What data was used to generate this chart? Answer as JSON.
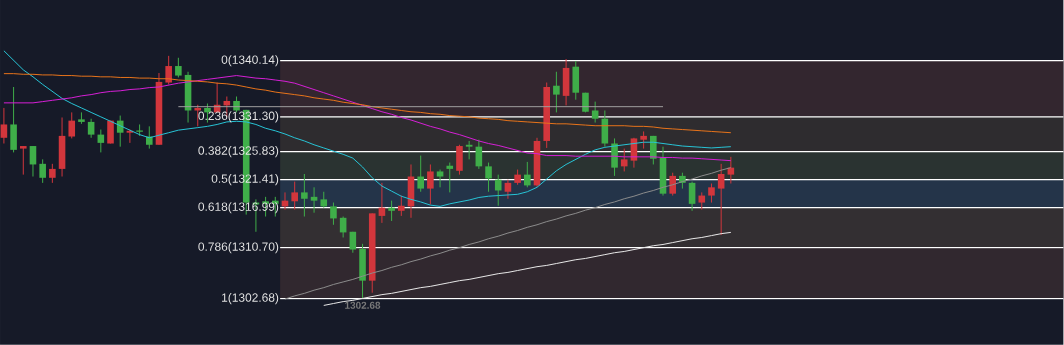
{
  "chart_data": {
    "type": "candlestick",
    "categories": [
      null,
      null,
      null,
      null,
      null,
      null,
      null,
      null,
      null,
      null,
      null,
      null,
      null,
      null,
      null,
      null,
      null,
      null,
      null,
      null,
      null,
      null,
      null,
      null,
      null,
      null,
      null,
      null,
      null,
      null,
      null,
      null,
      null,
      null,
      null,
      null,
      null,
      null,
      null,
      null,
      null,
      null,
      null,
      null,
      null,
      null,
      null,
      null,
      null,
      null,
      null,
      null,
      null,
      null,
      null,
      null,
      null,
      null,
      null,
      null,
      null,
      null,
      null,
      null,
      null,
      null,
      null,
      null,
      null,
      null,
      null,
      null,
      null,
      null,
      null,
      null
    ],
    "ylim": [
      1295.4,
      1349.7
    ],
    "tick_labels": false,
    "series": [
      {
        "ohlc": [
          [
            1328.0,
            1332.7,
            1327.1,
            1330.1
          ],
          [
            1330.1,
            1336.0,
            1325.7,
            1326.1
          ],
          [
            1326.3,
            1326.7,
            1322.2,
            1326.7
          ],
          [
            1326.7,
            1326.7,
            1321.9,
            1323.8
          ],
          [
            1323.9,
            1324.6,
            1320.9,
            1321.7
          ],
          [
            1321.7,
            1323.9,
            1320.9,
            1323.1
          ],
          [
            1323.1,
            1331.2,
            1321.9,
            1328.3
          ],
          [
            1328.2,
            1332.0,
            1327.9,
            1330.7
          ],
          [
            1330.9,
            1332.0,
            1330.2,
            1330.5
          ],
          [
            1330.5,
            1331.0,
            1328.0,
            1328.5
          ],
          [
            1328.5,
            1329.3,
            1325.7,
            1327.2
          ],
          [
            1327.1,
            1330.7,
            1327.1,
            1330.7
          ],
          [
            1330.7,
            1331.5,
            1326.6,
            1328.8
          ],
          [
            1328.8,
            1329.3,
            1327.2,
            1329.1
          ],
          [
            1329.1,
            1330.1,
            1328.3,
            1329.0
          ],
          [
            1328.2,
            1329.8,
            1326.3,
            1326.9
          ],
          [
            1326.9,
            1338.2,
            1326.9,
            1336.8
          ],
          [
            1336.7,
            1340.9,
            1336.4,
            1339.3
          ],
          [
            1339.3,
            1340.6,
            1337.5,
            1337.8
          ],
          [
            1337.9,
            1338.4,
            1330.4,
            1332.3
          ],
          [
            1332.3,
            1333.2,
            1329.8,
            1332.7
          ],
          [
            1332.7,
            1333.4,
            1330.4,
            1332.0
          ],
          [
            1332.0,
            1336.7,
            1332.0,
            1333.2
          ],
          [
            1333.1,
            1334.5,
            1331.3,
            1333.8
          ],
          [
            1333.8,
            1334.5,
            1332.0,
            1332.3
          ],
          [
            1332.4,
            1332.4,
            1315.9,
            1317.8
          ],
          [
            1317.8,
            1318.3,
            1313.2,
            1317.5
          ],
          [
            1318.0,
            1318.7,
            1315.6,
            1317.6
          ],
          [
            1318.1,
            1318.7,
            1315.6,
            1317.6
          ],
          [
            1317.2,
            1319.4,
            1316.7,
            1318.1
          ],
          [
            1318.0,
            1321.1,
            1316.7,
            1319.4
          ],
          [
            1319.4,
            1322.3,
            1315.6,
            1318.4
          ],
          [
            1318.7,
            1320.2,
            1316.2,
            1318.1
          ],
          [
            1318.3,
            1319.5,
            1317.0,
            1317.2
          ],
          [
            1317.2,
            1317.8,
            1314.3,
            1315.3
          ],
          [
            1315.4,
            1315.6,
            1312.3,
            1313.1
          ],
          [
            1313.2,
            1313.2,
            1309.9,
            1310.4
          ],
          [
            1310.5,
            1311.3,
            1302.68,
            1305.5
          ],
          [
            1305.5,
            1316.1,
            1303.6,
            1316.1
          ],
          [
            1315.7,
            1320.9,
            1314.6,
            1317.0
          ],
          [
            1317.0,
            1318.1,
            1314.9,
            1316.5
          ],
          [
            1316.5,
            1318.9,
            1315.7,
            1317.3
          ],
          [
            1317.2,
            1323.8,
            1315.4,
            1321.9
          ],
          [
            1321.9,
            1325.2,
            1319.5,
            1320.0
          ],
          [
            1320.0,
            1323.8,
            1317.5,
            1322.7
          ],
          [
            1322.7,
            1323.0,
            1320.2,
            1321.9
          ],
          [
            1323.6,
            1324.1,
            1319.4,
            1323.1
          ],
          [
            1322.8,
            1326.9,
            1322.2,
            1326.7
          ],
          [
            1326.9,
            1327.5,
            1324.6,
            1326.6
          ],
          [
            1326.6,
            1327.7,
            1323.1,
            1323.5
          ],
          [
            1323.5,
            1324.1,
            1319.5,
            1321.6
          ],
          [
            1321.4,
            1322.2,
            1317.3,
            1319.7
          ],
          [
            1319.5,
            1321.4,
            1318.4,
            1320.9
          ],
          [
            1320.9,
            1323.0,
            1320.6,
            1322.2
          ],
          [
            1322.2,
            1324.2,
            1320.2,
            1320.5
          ],
          [
            1320.5,
            1328.0,
            1320.3,
            1327.5
          ],
          [
            1327.5,
            1336.7,
            1326.4,
            1336.0
          ],
          [
            1336.2,
            1338.4,
            1332.0,
            1334.8
          ],
          [
            1334.6,
            1340.4,
            1333.1,
            1339.0
          ],
          [
            1339.2,
            1340.1,
            1334.0,
            1335.1
          ],
          [
            1335.1,
            1335.1,
            1332.0,
            1332.1
          ],
          [
            1332.3,
            1333.7,
            1330.4,
            1331.0
          ],
          [
            1331.0,
            1332.3,
            1326.6,
            1327.1
          ],
          [
            1327.1,
            1327.9,
            1322.0,
            1323.3
          ],
          [
            1323.5,
            1326.3,
            1322.7,
            1324.6
          ],
          [
            1324.4,
            1328.0,
            1323.3,
            1327.9
          ],
          [
            1327.7,
            1329.0,
            1326.3,
            1328.3
          ],
          [
            1328.3,
            1328.3,
            1323.8,
            1324.7
          ],
          [
            1324.9,
            1326.6,
            1318.9,
            1319.2
          ],
          [
            1319.2,
            1322.5,
            1318.9,
            1322.0
          ],
          [
            1322.0,
            1322.5,
            1320.0,
            1320.9
          ],
          [
            1320.9,
            1321.1,
            1316.5,
            1317.6
          ],
          [
            1317.8,
            1319.4,
            1316.7,
            1318.9
          ],
          [
            1318.9,
            1320.8,
            1317.8,
            1320.2
          ],
          [
            1320.0,
            1323.9,
            1312.7,
            1322.3
          ],
          [
            1322.2,
            1325.0,
            1320.8,
            1323.3
          ]
        ],
        "colors": [
          "#d2363c",
          "#3fae49",
          "#d2363c",
          "#3fae49",
          "#3fae49",
          "#d2363c",
          "#d2363c",
          "#d2363c",
          "#3fae49",
          "#3fae49",
          "#3fae49",
          "#d2363c",
          "#3fae49",
          "#d2363c",
          "#3fae49",
          "#3fae49",
          "#d2363c",
          "#d2363c",
          "#3fae49",
          "#3fae49",
          "#d2363c",
          "#3fae49",
          "#d2363c",
          "#d2363c",
          "#3fae49",
          "#3fae49",
          "#3fae49",
          "#3fae49",
          "#3fae49",
          "#d2363c",
          "#d2363c",
          "#3fae49",
          "#3fae49",
          "#3fae49",
          "#3fae49",
          "#3fae49",
          "#3fae49",
          "#3fae49",
          "#d2363c",
          "#d2363c",
          "#3fae49",
          "#d2363c",
          "#d2363c",
          "#3fae49",
          "#d2363c",
          "#3fae49",
          "#3fae49",
          "#d2363c",
          "#3fae49",
          "#3fae49",
          "#3fae49",
          "#3fae49",
          "#d2363c",
          "#d2363c",
          "#3fae49",
          "#d2363c",
          "#d2363c",
          "#3fae49",
          "#d2363c",
          "#3fae49",
          "#3fae49",
          "#3fae49",
          "#3fae49",
          "#3fae49",
          "#d2363c",
          "#d2363c",
          "#d2363c",
          "#3fae49",
          "#3fae49",
          "#d2363c",
          "#3fae49",
          "#3fae49",
          "#d2363c",
          "#d2363c",
          "#d2363c",
          "#d2363c"
        ]
      },
      {
        "type": "line",
        "color": "#27c4d6",
        "values": [
          1341.7,
          1340.2,
          1338.7,
          1337.6,
          1336.4,
          1335.3,
          1334.2,
          1333.4,
          1332.7,
          1332.0,
          1331.3,
          1330.6,
          1329.9,
          1329.2,
          1328.5,
          1328.0,
          1328.4,
          1328.8,
          1329.2,
          1329.4,
          1329.6,
          1329.8,
          1330.1,
          1330.5,
          1330.6,
          1330.5,
          1330.1,
          1329.5,
          1329.1,
          1328.6,
          1328.0,
          1327.5,
          1326.9,
          1326.4,
          1325.9,
          1325.4,
          1324.8,
          1323.4,
          1321.7,
          1320.4,
          1319.6,
          1318.8,
          1318.3,
          1317.9,
          1317.4,
          1317.2,
          1317.6,
          1317.9,
          1318.2,
          1318.6,
          1318.8,
          1318.9,
          1319.0,
          1319.1,
          1319.5,
          1320.2,
          1321.5,
          1322.8,
          1323.8,
          1324.6,
          1325.4,
          1326.1,
          1326.5,
          1326.7,
          1326.9,
          1327.1,
          1327.3,
          1327.3,
          1327.1,
          1326.9,
          1326.7,
          1326.6,
          1326.5,
          1326.4,
          1326.5,
          1326.6
        ]
      },
      {
        "type": "line",
        "color": "#d61fd6",
        "values": [
          1333.5,
          1333.5,
          1333.5,
          1333.5,
          1333.7,
          1333.9,
          1334.1,
          1334.3,
          1334.6,
          1334.8,
          1335.1,
          1335.3,
          1335.4,
          1335.6,
          1335.7,
          1335.9,
          1336.0,
          1336.3,
          1336.6,
          1336.8,
          1337.0,
          1337.2,
          1337.4,
          1337.6,
          1337.8,
          1337.6,
          1337.4,
          1337.3,
          1337.1,
          1336.9,
          1336.6,
          1336.1,
          1335.6,
          1335.1,
          1334.6,
          1334.1,
          1333.6,
          1333.1,
          1332.6,
          1332.1,
          1331.7,
          1331.2,
          1330.8,
          1330.3,
          1329.8,
          1329.4,
          1328.9,
          1328.5,
          1328.0,
          1327.5,
          1327.1,
          1326.8,
          1326.4,
          1326.0,
          1325.6,
          1325.5,
          1325.2,
          1325.2,
          1325.2,
          1325.1,
          1325.1,
          1325.1,
          1325.1,
          1325.1,
          1325.0,
          1325.0,
          1325.0,
          1325.0,
          1324.9,
          1324.9,
          1324.8,
          1324.8,
          1324.7,
          1324.6,
          1324.5,
          1324.4
        ]
      },
      {
        "type": "line",
        "color": "#e8731a",
        "values": [
          1338.1,
          1338.1,
          1338.0,
          1338.0,
          1337.9,
          1337.9,
          1337.8,
          1337.8,
          1337.7,
          1337.7,
          1337.6,
          1337.6,
          1337.5,
          1337.5,
          1337.4,
          1337.4,
          1337.3,
          1337.3,
          1337.1,
          1337.0,
          1336.9,
          1336.8,
          1336.6,
          1336.5,
          1336.3,
          1336.0,
          1335.7,
          1335.5,
          1335.2,
          1335.0,
          1334.8,
          1334.6,
          1334.3,
          1334.1,
          1333.9,
          1333.6,
          1333.4,
          1333.2,
          1332.9,
          1332.7,
          1332.5,
          1332.3,
          1332.1,
          1332.0,
          1331.8,
          1331.7,
          1331.5,
          1331.4,
          1331.3,
          1331.1,
          1331.0,
          1330.9,
          1330.7,
          1330.6,
          1330.5,
          1330.4,
          1330.3,
          1330.2,
          1330.2,
          1330.1,
          1330.0,
          1329.9,
          1329.9,
          1329.9,
          1329.9,
          1329.8,
          1329.8,
          1329.7,
          1329.5,
          1329.4,
          1329.3,
          1329.2,
          1329.1,
          1329.0,
          1328.9,
          1328.8
        ]
      },
      {
        "type": "line",
        "color": "#a0a0a0",
        "values": [
          null,
          null,
          null,
          null,
          null,
          null,
          null,
          null,
          null,
          null,
          null,
          null,
          null,
          null,
          null,
          null,
          null,
          null,
          1332.9,
          1332.9,
          1332.9,
          1332.9,
          1332.9,
          1332.9,
          1332.9,
          1332.9,
          1332.9,
          1332.9,
          1332.9,
          1332.9,
          1332.9,
          1332.9,
          1332.9,
          1332.9,
          1332.9,
          1332.9,
          1332.9,
          1332.9,
          1332.9,
          1332.9,
          1332.9,
          1332.9,
          1332.9,
          1332.9,
          1332.9,
          1332.9,
          1332.9,
          1332.9,
          1332.9,
          1332.9,
          1332.9,
          1332.9,
          1332.9,
          1332.9,
          1332.9,
          1332.9,
          1332.9,
          1332.9,
          1332.9,
          1332.9,
          1332.9,
          1332.9,
          1332.9,
          1332.9,
          1332.9,
          1332.9,
          1332.9,
          1332.9,
          1332.9,
          null,
          null,
          null,
          null,
          null,
          null,
          null
        ]
      },
      {
        "type": "line",
        "color": "#8c8c8c",
        "values": [
          null,
          null,
          null,
          null,
          null,
          null,
          null,
          null,
          null,
          null,
          null,
          null,
          null,
          null,
          null,
          null,
          null,
          null,
          null,
          null,
          null,
          null,
          null,
          null,
          null,
          null,
          null,
          null,
          null,
          1302.6,
          1303.1,
          1303.5,
          1304.0,
          1304.4,
          1304.9,
          1305.3,
          1305.7,
          1306.2,
          1306.7,
          1307.1,
          1307.6,
          1308.0,
          1308.5,
          1308.9,
          1309.4,
          1309.8,
          1310.3,
          1310.7,
          1311.2,
          1311.6,
          1312.1,
          1312.5,
          1313.0,
          1313.4,
          1313.9,
          1314.3,
          1314.8,
          1315.2,
          1315.7,
          1316.1,
          1316.6,
          1317.0,
          1317.5,
          1317.9,
          1318.4,
          1318.8,
          1319.3,
          1319.7,
          1320.2,
          1320.6,
          1321.1,
          1321.5,
          1322.0,
          1322.4,
          1322.9,
          1323.3
        ]
      },
      {
        "type": "line",
        "color": "#e8e8e8",
        "values": [
          null,
          null,
          null,
          null,
          null,
          null,
          null,
          null,
          null,
          null,
          null,
          null,
          null,
          null,
          null,
          null,
          null,
          null,
          null,
          null,
          null,
          null,
          null,
          null,
          null,
          null,
          null,
          null,
          null,
          null,
          null,
          null,
          null,
          1301.6,
          1301.9,
          1302.2,
          1302.4,
          1302.7,
          1303.0,
          1303.3,
          1303.5,
          1303.8,
          1304.1,
          1304.4,
          1304.6,
          1304.9,
          1305.2,
          1305.5,
          1305.7,
          1306.0,
          1306.3,
          1306.6,
          1306.8,
          1307.1,
          1307.4,
          1307.7,
          1307.9,
          1308.2,
          1308.5,
          1308.8,
          1309.0,
          1309.3,
          1309.6,
          1309.9,
          1310.1,
          1310.4,
          1310.7,
          1311.0,
          1311.2,
          1311.5,
          1311.8,
          1312.1,
          1312.3,
          1312.6,
          1312.9,
          1313.1
        ]
      }
    ],
    "bands": [
      {
        "axis": "y",
        "from": 1331.3,
        "to": 1340.14,
        "color": "#33262f"
      },
      {
        "axis": "y",
        "from": 1325.83,
        "to": 1331.3,
        "color": "#2e2c2f"
      },
      {
        "axis": "y",
        "from": 1321.41,
        "to": 1325.83,
        "color": "#2a3331"
      },
      {
        "axis": "y",
        "from": 1316.99,
        "to": 1321.41,
        "color": "#243449"
      },
      {
        "axis": "y",
        "from": 1310.7,
        "to": 1316.99,
        "color": "#332f32"
      },
      {
        "axis": "y",
        "from": 1302.68,
        "to": 1310.7,
        "color": "#31282f"
      }
    ],
    "ref_lines": [
      {
        "axis": "y",
        "value": 1340.14,
        "label": "0(1340.14)",
        "color": "#ffffff"
      },
      {
        "axis": "y",
        "value": 1331.3,
        "label": "0.236(1331.30)",
        "color": "#ffffff"
      },
      {
        "axis": "y",
        "value": 1325.83,
        "label": "0.382(1325.83)",
        "color": "#ffffff"
      },
      {
        "axis": "y",
        "value": 1321.41,
        "label": "0.5(1321.41)",
        "color": "#ffffff"
      },
      {
        "axis": "y",
        "value": 1316.99,
        "label": "0.618(1316.99)",
        "color": "#ffffff"
      },
      {
        "axis": "y",
        "value": 1310.7,
        "label": "0.786(1310.70)",
        "color": "#ffffff"
      },
      {
        "axis": "y",
        "value": 1302.68,
        "label": "1(1302.68)",
        "color": "#ffffff"
      }
    ],
    "annotations": [
      {
        "text": "1302.68",
        "y": 1302.68
      }
    ]
  }
}
